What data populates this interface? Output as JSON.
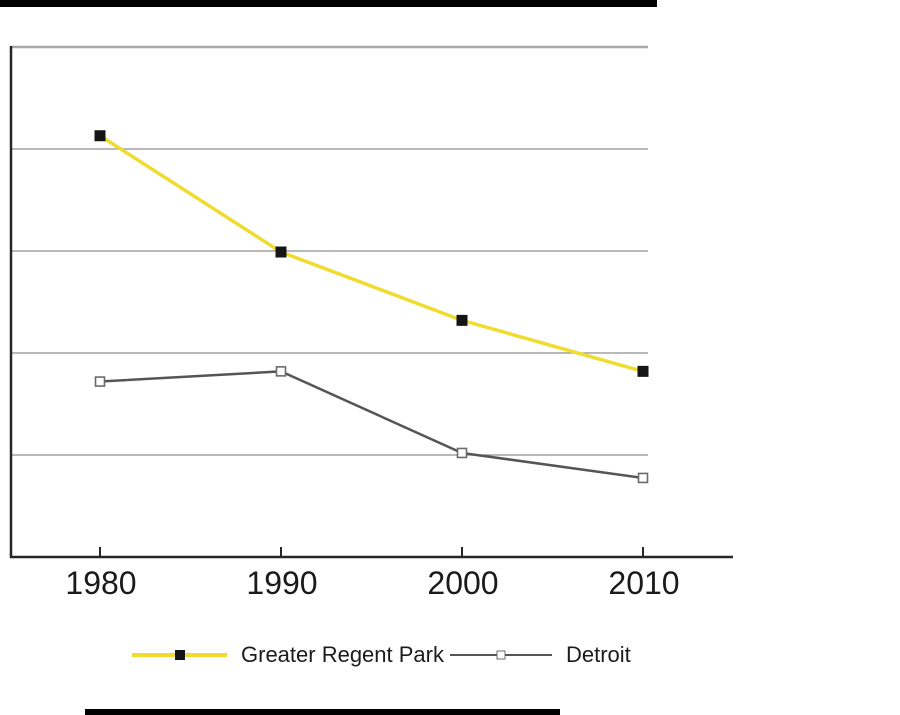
{
  "page": {
    "background": "#ffffff",
    "title": ""
  },
  "artifacts": {
    "top_bar_color": "#000000",
    "bottom_bar_color": "#000000"
  },
  "chart_data": {
    "type": "line",
    "title": "",
    "xlabel": "",
    "ylabel": "",
    "categories": [
      "1980",
      "1990",
      "2000",
      "2010"
    ],
    "series": [
      {
        "name": "Greater Regent Park",
        "values": [
          41.3,
          29.9,
          23.2,
          18.2
        ],
        "color": "#F0DC2E",
        "line_width": 3.5,
        "marker": "filled-square",
        "marker_fill": "#151515",
        "marker_size": 11
      },
      {
        "name": "Detroit",
        "values": [
          17.2,
          18.2,
          10.2,
          7.75
        ],
        "color": "#555555",
        "line_width": 2.5,
        "marker": "open-square",
        "marker_fill": "#ffffff",
        "marker_stroke": "#6b6b6b",
        "marker_size": 9
      }
    ],
    "ylim": [
      0,
      50
    ],
    "gridline_step": 10,
    "y_axis_labels_visible": false,
    "grid": true,
    "legend_position": "bottom",
    "colors": {
      "gridline": "#8F8F8F",
      "top_border": "#A8A8A8",
      "axis": "#262626",
      "tick_label": "#1a1a1a"
    }
  }
}
